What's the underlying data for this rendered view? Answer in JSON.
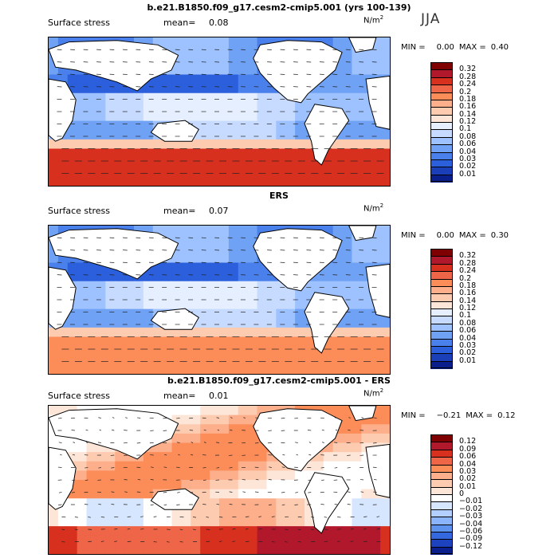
{
  "season": "JJA",
  "colors": {
    "ocean_blue": "#2f6fd8",
    "land": "#ffffff",
    "coast": "#000000"
  },
  "panels": [
    {
      "title": "b.e21.B1850.f09_g17.cesm2-cmip5.001 (yrs 100-139)",
      "variable": "Surface stress",
      "mean_label": "mean=",
      "mean": "0.08",
      "units": "N/m",
      "units_exp": "2",
      "min_label": "MIN =",
      "min": "0.00",
      "max_label": "MAX =",
      "max": "0.40",
      "colorbar": {
        "labels": [
          "0.32",
          "0.28",
          "0.24",
          "0.2",
          "0.18",
          "0.16",
          "0.14",
          "0.12",
          "0.1",
          "0.08",
          "0.06",
          "0.04",
          "0.03",
          "0.02",
          "0.01"
        ],
        "colors": [
          "#7f0000",
          "#b2182b",
          "#d7301f",
          "#ef6548",
          "#fc8d59",
          "#fdae8b",
          "#fdcbb0",
          "#fde5d8",
          "#e6efff",
          "#c6dbff",
          "#9ec2ff",
          "#6fa2f5",
          "#4a80ec",
          "#2b5fdc",
          "#1b3fb8",
          "#0a1f8c"
        ]
      }
    },
    {
      "title": "ERS",
      "variable": "Surface stress",
      "mean_label": "mean=",
      "mean": "0.07",
      "units": "N/m",
      "units_exp": "2",
      "min_label": "MIN =",
      "min": "0.00",
      "max_label": "MAX =",
      "max": "0.30",
      "colorbar": {
        "labels": [
          "0.32",
          "0.28",
          "0.24",
          "0.2",
          "0.18",
          "0.16",
          "0.14",
          "0.12",
          "0.1",
          "0.08",
          "0.06",
          "0.04",
          "0.03",
          "0.02",
          "0.01"
        ],
        "colors": [
          "#7f0000",
          "#b2182b",
          "#d7301f",
          "#ef6548",
          "#fc8d59",
          "#fdae8b",
          "#fdcbb0",
          "#fde5d8",
          "#e6efff",
          "#c6dbff",
          "#9ec2ff",
          "#6fa2f5",
          "#4a80ec",
          "#2b5fdc",
          "#1b3fb8",
          "#0a1f8c"
        ]
      }
    },
    {
      "title": "b.e21.B1850.f09_g17.cesm2-cmip5.001 - ERS",
      "variable": "Surface stress",
      "mean_label": "mean=",
      "mean": "0.01",
      "units": "N/m",
      "units_exp": "2",
      "min_label": "MIN =",
      "min": "−0.21",
      "max_label": "MAX =",
      "max": "0.12",
      "colorbar": {
        "labels": [
          "0.12",
          "0.09",
          "0.06",
          "0.04",
          "0.03",
          "0.02",
          "0.01",
          "0",
          "−0.01",
          "−0.02",
          "−0.03",
          "−0.04",
          "−0.06",
          "−0.09",
          "−0.12"
        ],
        "colors": [
          "#7f0000",
          "#b2182b",
          "#d7301f",
          "#ef6548",
          "#fc8d59",
          "#fdae8b",
          "#fdcbb0",
          "#fde5d8",
          "#ffffff",
          "#d6e6ff",
          "#b3cfff",
          "#8cb4fa",
          "#5e92ef",
          "#3468de",
          "#1c43bd",
          "#0a1f8c"
        ]
      }
    }
  ]
}
